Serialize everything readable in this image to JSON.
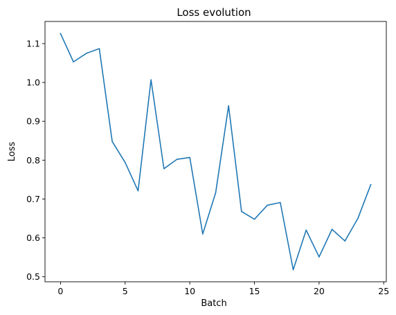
{
  "chart_data": {
    "type": "line",
    "title": "Loss evolution",
    "xlabel": "Batch",
    "ylabel": "Loss",
    "xlim": [
      -1.2,
      25.2
    ],
    "ylim": [
      0.487,
      1.157
    ],
    "xticks": [
      0,
      5,
      10,
      15,
      20,
      25
    ],
    "yticks": [
      0.5,
      0.6,
      0.7,
      0.8,
      0.9,
      1.0,
      1.1
    ],
    "ytick_labels": [
      "0.5",
      "0.6",
      "0.7",
      "0.8",
      "0.9",
      "1.0",
      "1.1"
    ],
    "grid": false,
    "series": [
      {
        "color": "#1f77b4",
        "x": [
          0,
          1,
          2,
          3,
          4,
          5,
          6,
          7,
          8,
          9,
          10,
          11,
          12,
          13,
          14,
          15,
          16,
          17,
          18,
          19,
          20,
          21,
          22,
          23,
          24
        ],
        "y": [
          1.126,
          1.053,
          1.075,
          1.087,
          0.848,
          0.794,
          0.721,
          1.007,
          0.778,
          0.802,
          0.807,
          0.61,
          0.716,
          0.94,
          0.668,
          0.648,
          0.684,
          0.691,
          0.518,
          0.62,
          0.551,
          0.622,
          0.592,
          0.65,
          0.737
        ]
      }
    ]
  }
}
